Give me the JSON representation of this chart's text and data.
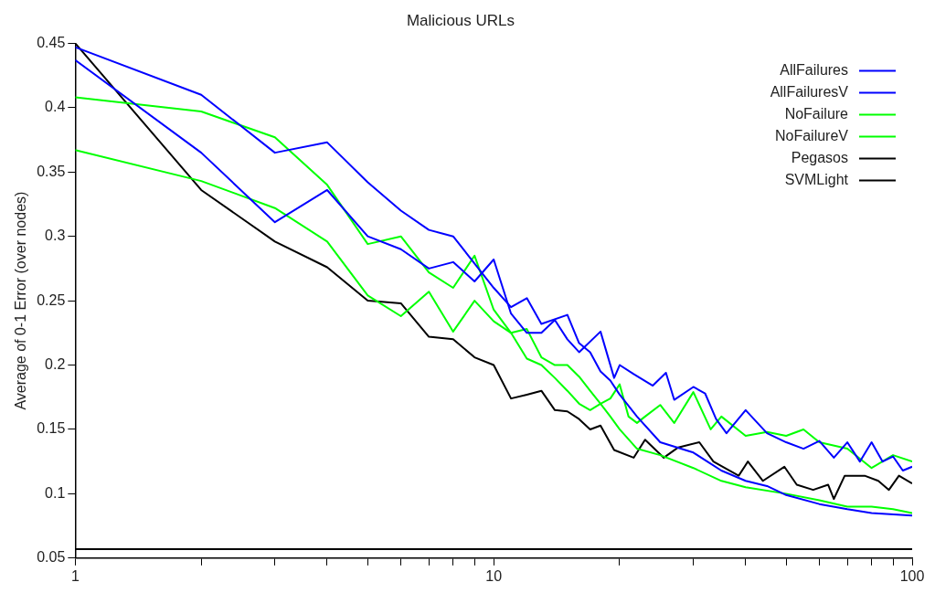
{
  "chart_data": {
    "type": "line",
    "title": "Malicious URLs",
    "ylabel": "Average of 0-1 Error (over nodes)",
    "xlim": [
      1,
      100
    ],
    "xticks": [
      1,
      {
        "value": 2,
        "label": null
      },
      {
        "value": 3,
        "label": null
      },
      {
        "value": 4,
        "label": null
      },
      {
        "value": 5,
        "label": null
      },
      {
        "value": 6,
        "label": null
      },
      {
        "value": 7,
        "label": null
      },
      {
        "value": 8,
        "label": null
      },
      {
        "value": 9,
        "label": null
      },
      10,
      {
        "value": 20,
        "label": null
      },
      {
        "value": 30,
        "label": null
      },
      {
        "value": 40,
        "label": null
      },
      {
        "value": 50,
        "label": null
      },
      {
        "value": 60,
        "label": null
      },
      {
        "value": 70,
        "label": null
      },
      {
        "value": 80,
        "label": null
      },
      {
        "value": 90,
        "label": null
      },
      100
    ],
    "ylim": [
      0.05,
      0.45
    ],
    "yticks": [
      0.05,
      0.1,
      0.15,
      0.2,
      0.25,
      0.3,
      0.35,
      0.4,
      0.45
    ],
    "log": "x",
    "grid": false,
    "legend": "top right",
    "marker": "none",
    "line_style": "solid",
    "series": [
      {
        "name": "AllFailures",
        "color": "#0000ff",
        "x": [
          1,
          2,
          3,
          4,
          5,
          6,
          7,
          8,
          9,
          10,
          11,
          12,
          13,
          14,
          15,
          16,
          18,
          19.4,
          20,
          21.6,
          24,
          25.8,
          27,
          30,
          32,
          34,
          36,
          40,
          45,
          50,
          55,
          60,
          65,
          70,
          75,
          80,
          85,
          90,
          95,
          100
        ],
        "values": [
          0.437,
          0.365,
          0.311,
          0.336,
          0.3,
          0.29,
          0.275,
          0.28,
          0.265,
          0.282,
          0.24,
          0.225,
          0.225,
          0.235,
          0.22,
          0.21,
          0.226,
          0.19,
          0.2,
          0.193,
          0.184,
          0.194,
          0.173,
          0.183,
          0.178,
          0.158,
          0.147,
          0.165,
          0.147,
          0.14,
          0.135,
          0.141,
          0.128,
          0.14,
          0.125,
          0.14,
          0.125,
          0.129,
          0.118,
          0.121
        ]
      },
      {
        "name": "AllFailuresV",
        "color": "#0000ff",
        "x": [
          1,
          2,
          3,
          4,
          5,
          6,
          7,
          8,
          8.7,
          10,
          11,
          12,
          13,
          15,
          16,
          17,
          18,
          19,
          20,
          22,
          25,
          30,
          35,
          40,
          45,
          50,
          60,
          70,
          80,
          100
        ],
        "values": [
          0.447,
          0.41,
          0.365,
          0.373,
          0.342,
          0.32,
          0.305,
          0.3,
          0.285,
          0.26,
          0.245,
          0.252,
          0.232,
          0.239,
          0.217,
          0.21,
          0.195,
          0.188,
          0.177,
          0.16,
          0.14,
          0.132,
          0.118,
          0.11,
          0.106,
          0.099,
          0.092,
          0.088,
          0.085,
          0.083
        ]
      },
      {
        "name": "NoFailure",
        "color": "#00ff00",
        "x": [
          1,
          2,
          3,
          4,
          5,
          6,
          7,
          8,
          9,
          10,
          11,
          12,
          13,
          14,
          15,
          16,
          17,
          18,
          19,
          20,
          21,
          22,
          23,
          25,
          27,
          30,
          33,
          35,
          40,
          45,
          50,
          55,
          60,
          70,
          80,
          90,
          100
        ],
        "values": [
          0.367,
          0.343,
          0.322,
          0.296,
          0.254,
          0.238,
          0.257,
          0.226,
          0.25,
          0.234,
          0.225,
          0.205,
          0.2,
          0.19,
          0.18,
          0.17,
          0.165,
          0.17,
          0.174,
          0.185,
          0.16,
          0.155,
          0.16,
          0.169,
          0.155,
          0.179,
          0.15,
          0.16,
          0.145,
          0.148,
          0.145,
          0.15,
          0.14,
          0.135,
          0.12,
          0.13,
          0.125
        ]
      },
      {
        "name": "NoFailureV",
        "color": "#00ff00",
        "x": [
          1,
          2,
          3,
          4,
          5,
          6,
          7,
          8,
          9,
          10,
          11,
          12,
          13,
          14,
          15,
          16,
          17,
          18,
          19,
          20,
          22,
          25,
          30,
          35,
          40,
          50,
          60,
          70,
          80,
          90,
          100
        ],
        "values": [
          0.408,
          0.397,
          0.377,
          0.34,
          0.294,
          0.3,
          0.272,
          0.26,
          0.285,
          0.243,
          0.225,
          0.228,
          0.206,
          0.2,
          0.2,
          0.191,
          0.18,
          0.17,
          0.16,
          0.15,
          0.135,
          0.13,
          0.12,
          0.11,
          0.105,
          0.1,
          0.095,
          0.09,
          0.09,
          0.088,
          0.085
        ]
      },
      {
        "name": "Pegasos",
        "color": "#000000",
        "x": [
          1,
          2,
          3,
          4,
          5,
          6,
          7,
          8,
          9,
          10,
          11,
          12,
          13,
          14,
          15,
          16,
          17,
          18,
          19.4,
          21.6,
          23,
          25.5,
          27.6,
          31,
          33.5,
          38.5,
          40.5,
          44,
          49.5,
          53,
          58,
          63,
          65,
          69,
          77,
          83,
          88,
          93,
          100
        ],
        "values": [
          0.45,
          0.336,
          0.296,
          0.276,
          0.25,
          0.248,
          0.222,
          0.22,
          0.206,
          0.2,
          0.174,
          0.177,
          0.18,
          0.165,
          0.164,
          0.158,
          0.15,
          0.153,
          0.134,
          0.128,
          0.142,
          0.128,
          0.136,
          0.14,
          0.125,
          0.114,
          0.125,
          0.11,
          0.121,
          0.107,
          0.103,
          0.107,
          0.096,
          0.114,
          0.114,
          0.11,
          0.103,
          0.114,
          0.108
        ]
      },
      {
        "name": "SVMLight",
        "color": "#000000",
        "x": [
          1,
          100
        ],
        "values": [
          0.057,
          0.057
        ]
      }
    ]
  }
}
